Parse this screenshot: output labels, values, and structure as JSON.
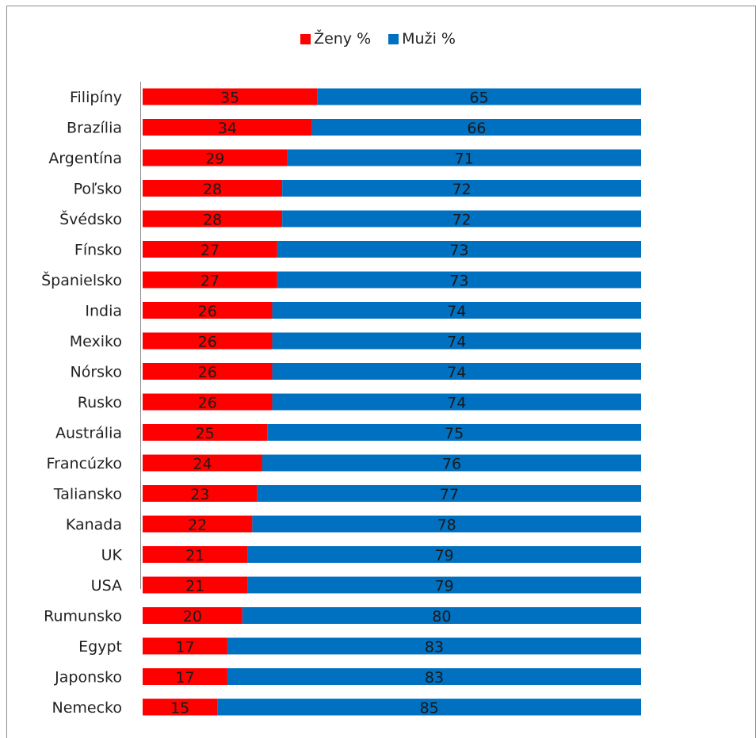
{
  "chart_data": {
    "type": "bar",
    "stacked": true,
    "orientation": "horizontal",
    "percent_stacked": true,
    "legend_position": "top",
    "grid": false,
    "xlim": [
      0,
      100
    ],
    "categories": [
      "Filipíny",
      "Brazília",
      "Argentína",
      "Poľsko",
      "Švédsko",
      "Fínsko",
      "Španielsko",
      "India",
      "Mexiko",
      "Nórsko",
      "Rusko",
      "Austrália",
      "Francúzko",
      "Taliansko",
      "Kanada",
      "UK",
      "USA",
      "Rumunsko",
      "Egypt",
      "Japonsko",
      "Nemecko"
    ],
    "series": [
      {
        "name": "Ženy %",
        "color": "#ff0000",
        "values": [
          35,
          34,
          29,
          28,
          28,
          27,
          27,
          26,
          26,
          26,
          26,
          25,
          24,
          23,
          22,
          21,
          21,
          20,
          17,
          17,
          15
        ]
      },
      {
        "name": "Muži %",
        "color": "#0070c0",
        "values": [
          65,
          66,
          71,
          72,
          72,
          73,
          73,
          74,
          74,
          74,
          74,
          75,
          76,
          77,
          78,
          79,
          79,
          80,
          83,
          83,
          85
        ]
      }
    ]
  }
}
